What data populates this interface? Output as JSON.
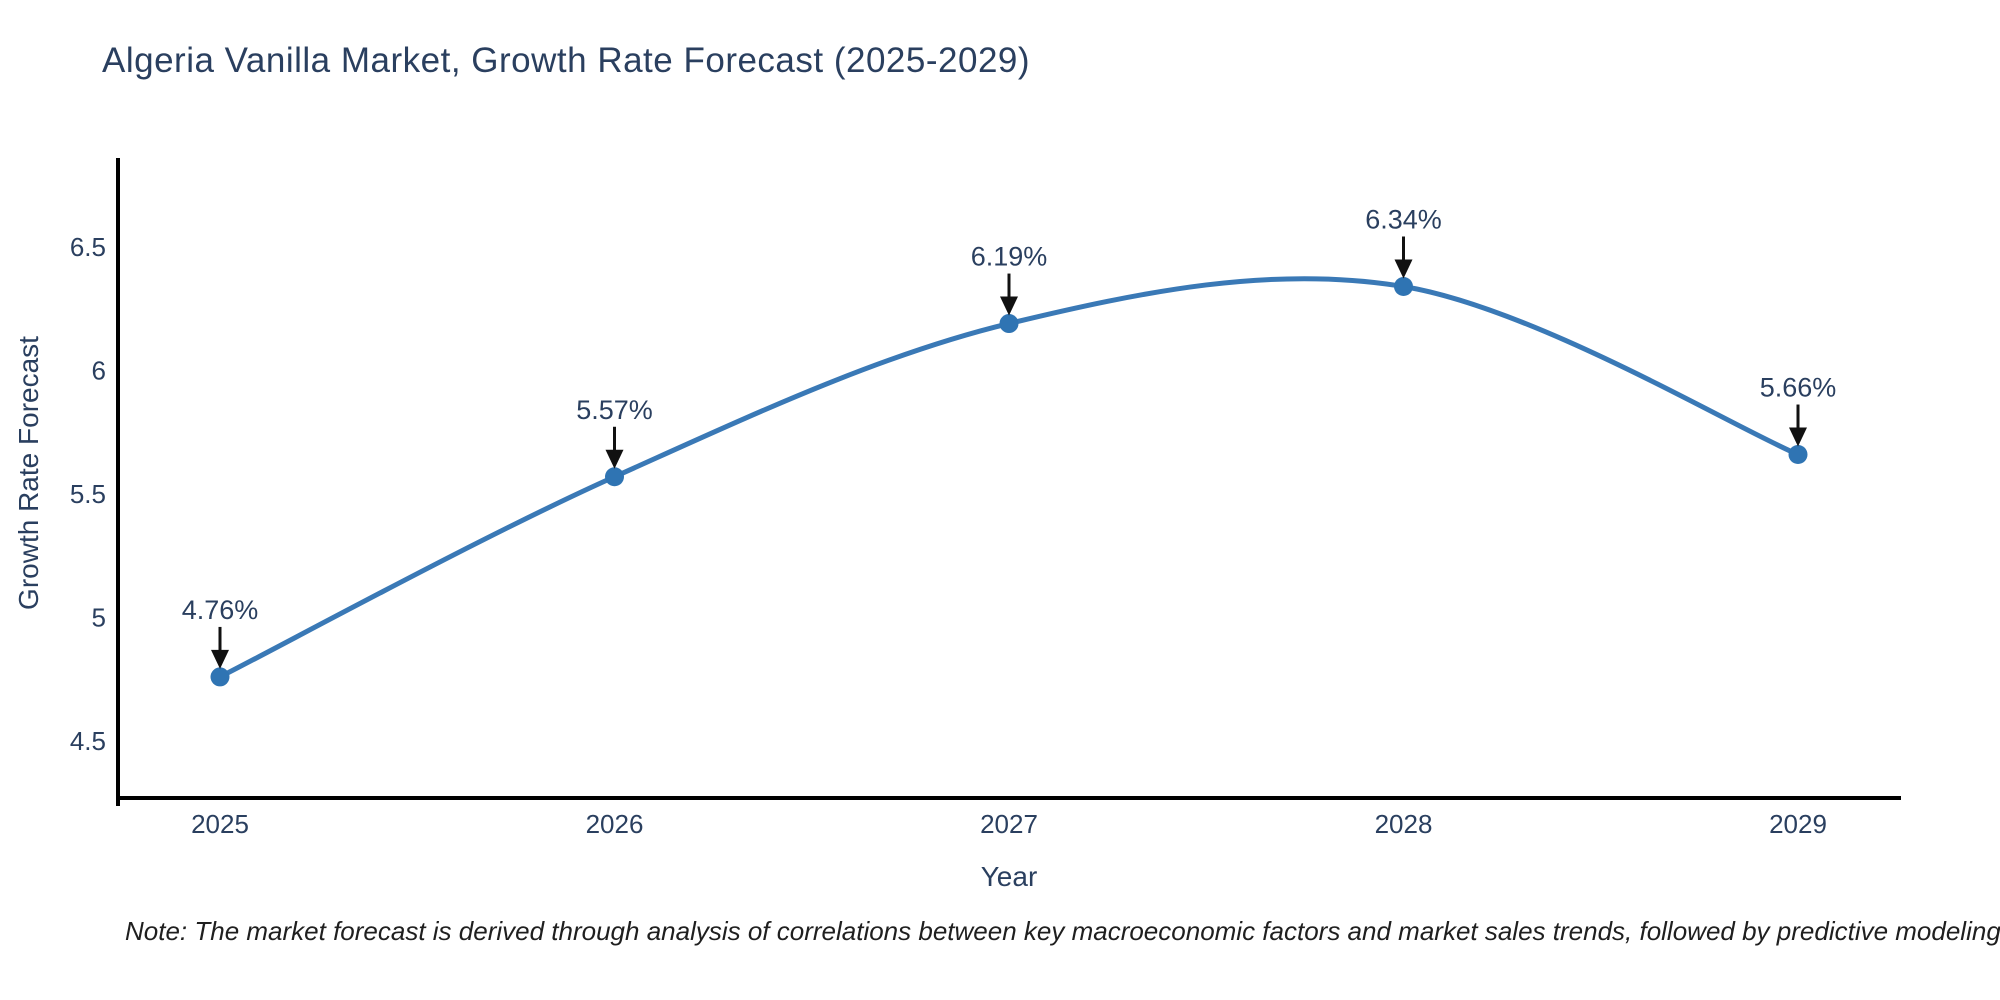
{
  "title": "Algeria Vanilla Market, Growth Rate Forecast (2025-2029)",
  "note": "Note: The market forecast is derived through analysis of correlations between key macroeconomic factors and market sales trends, followed by predictive modeling to project future sales",
  "chart_data": {
    "type": "line",
    "title": "Algeria Vanilla Market, Growth Rate Forecast (2025-2029)",
    "xlabel": "Year",
    "ylabel": "Growth Rate Forecast",
    "categories": [
      "2025",
      "2026",
      "2027",
      "2028",
      "2029"
    ],
    "values": [
      4.76,
      5.57,
      6.19,
      6.34,
      5.66
    ],
    "point_labels": [
      "4.76%",
      "5.57%",
      "6.19%",
      "6.34%",
      "5.66%"
    ],
    "yticks": [
      4.5,
      5,
      5.5,
      6,
      6.5
    ],
    "ylim": [
      4.27,
      6.86
    ],
    "line_shape": "spline",
    "grid": false,
    "legend_position": "none",
    "colors": {
      "line": "#3a79b6",
      "marker": "#2f74b3",
      "axis": "#000000",
      "text": "#2a3f5f",
      "annotation_text": "#2e3338",
      "arrow": "#111111",
      "background": "#ffffff"
    }
  }
}
